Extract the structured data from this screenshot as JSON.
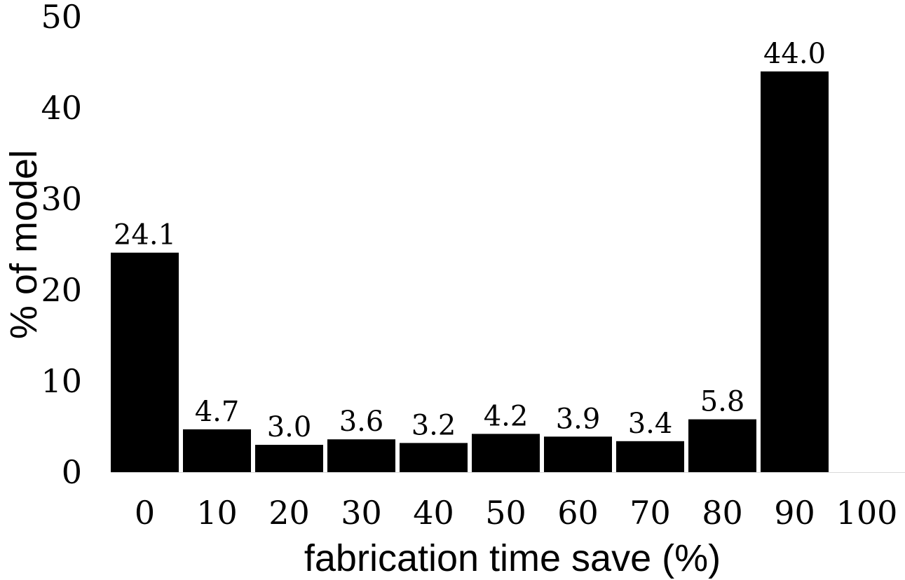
{
  "chart_data": {
    "type": "bar",
    "title": "",
    "xlabel": "fabrication time save (%)",
    "ylabel": "% of model",
    "x_tick_labels": [
      "0",
      "10",
      "20",
      "30",
      "40",
      "50",
      "60",
      "70",
      "80",
      "90",
      "100"
    ],
    "bins": [
      {
        "from": 0,
        "to": 10
      },
      {
        "from": 10,
        "to": 20
      },
      {
        "from": 20,
        "to": 30
      },
      {
        "from": 30,
        "to": 40
      },
      {
        "from": 40,
        "to": 50
      },
      {
        "from": 50,
        "to": 60
      },
      {
        "from": 60,
        "to": 70
      },
      {
        "from": 70,
        "to": 80
      },
      {
        "from": 80,
        "to": 90
      },
      {
        "from": 90,
        "to": 100
      }
    ],
    "values": [
      24.1,
      4.7,
      3.0,
      3.6,
      3.2,
      4.2,
      3.9,
      3.4,
      5.8,
      44.0
    ],
    "data_labels": [
      "24.1",
      "4.7",
      "3.0",
      "3.6",
      "3.2",
      "4.2",
      "3.9",
      "3.4",
      "5.8",
      "44.0"
    ],
    "xlim": [
      0,
      110
    ],
    "ylim": [
      0,
      50
    ],
    "y_ticks": [
      0,
      10,
      20,
      30,
      40,
      50
    ],
    "grid": false,
    "legend": "none",
    "bar_color": "#000000",
    "axis_color": "#d9d9d9"
  }
}
